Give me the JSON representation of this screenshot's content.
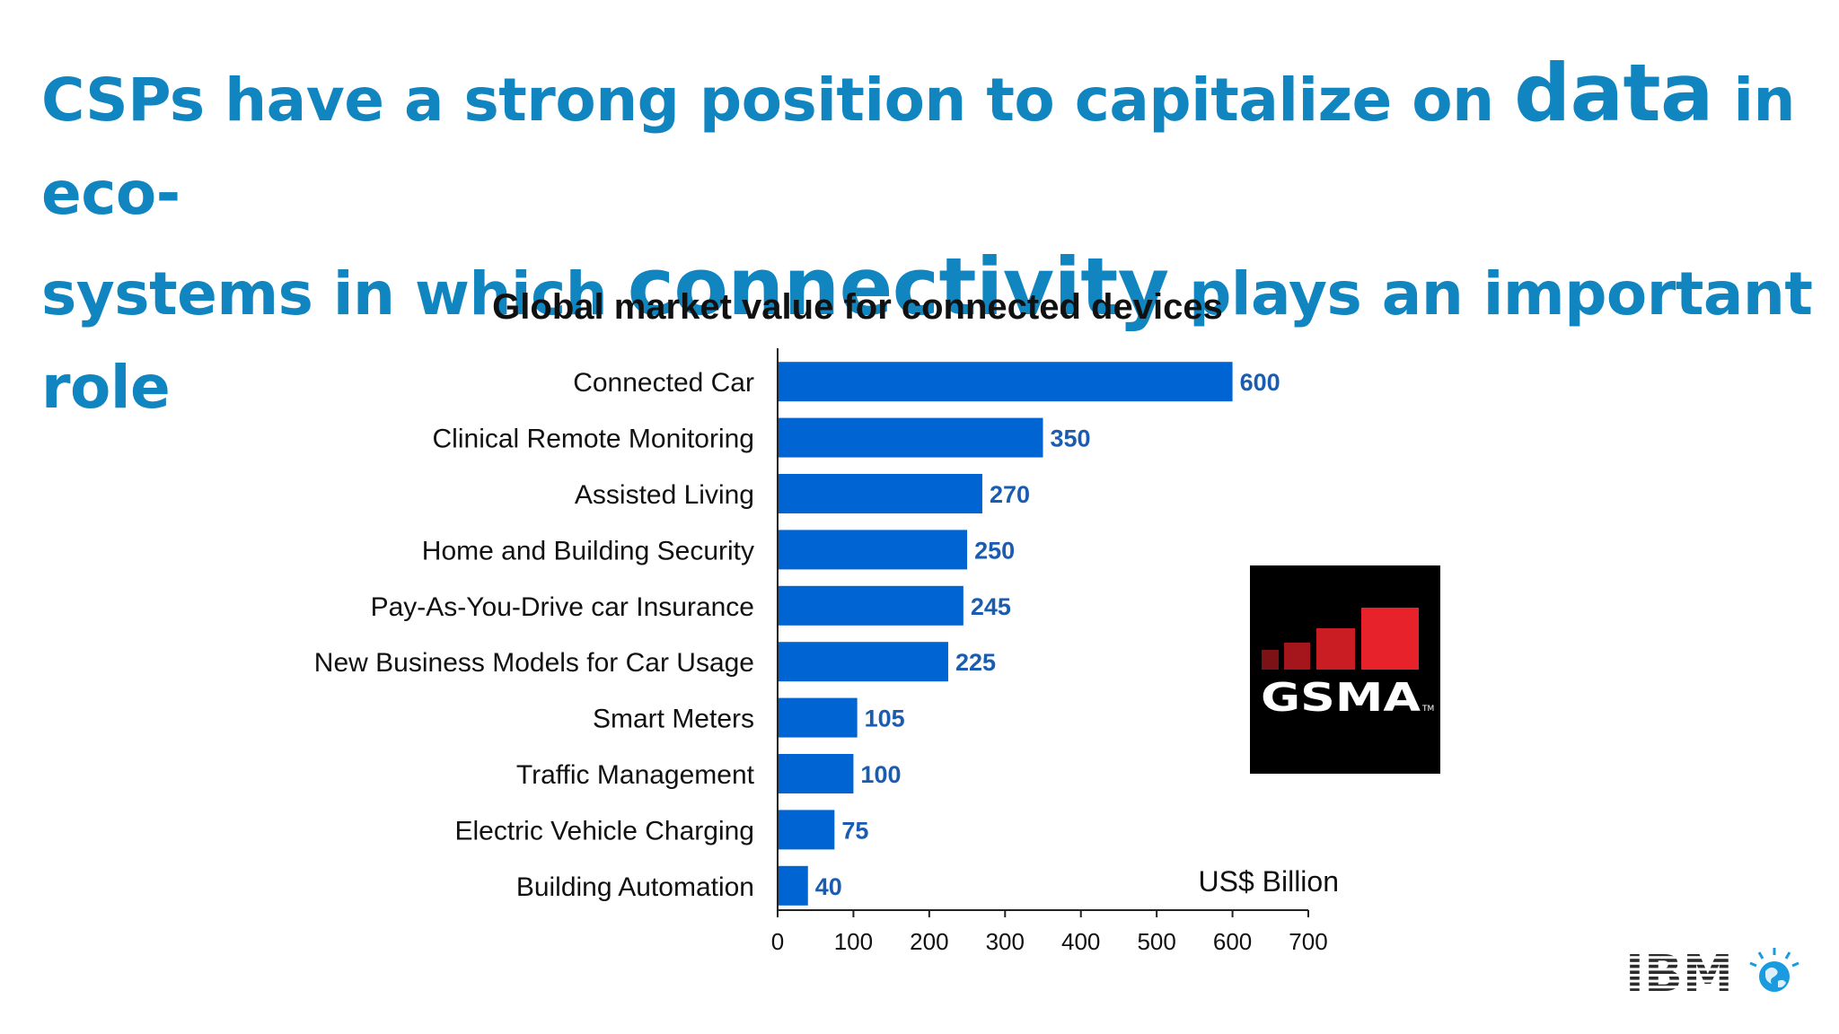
{
  "slide": {
    "headline": {
      "line1_pre": "CSPs have a strong position to capitalize on ",
      "line1_emph": "data",
      "line1_post": " in eco-",
      "line2_pre": "systems in which ",
      "line2_emph": "connectivity",
      "line2_post": " plays an important role"
    }
  },
  "colors": {
    "headline": "#1085c0",
    "bar": "#0064d2",
    "value_label": "#1a5cb0",
    "gsma_bg": "#000000",
    "gsma_red": "#e8222a",
    "ibm": "#2b2b2b"
  },
  "logos": {
    "gsma": "GSMA",
    "gsma_tm": "TM",
    "ibm": "IBM"
  },
  "chart_data": {
    "type": "bar",
    "orientation": "horizontal",
    "title": "Global market value for connected devices",
    "unit_label": "US$ Billion",
    "categories": [
      "Connected Car",
      "Clinical Remote Monitoring",
      "Assisted Living",
      "Home and Building Security",
      "Pay-As-You-Drive car Insurance",
      "New Business Models for Car Usage",
      "Smart Meters",
      "Traffic Management",
      "Electric Vehicle Charging",
      "Building Automation"
    ],
    "values": [
      600,
      350,
      270,
      250,
      245,
      225,
      105,
      100,
      75,
      40
    ],
    "xlim": [
      0,
      700
    ],
    "xticks": [
      0,
      100,
      200,
      300,
      400,
      500,
      600,
      700
    ],
    "grid": false,
    "data_labels": true
  }
}
